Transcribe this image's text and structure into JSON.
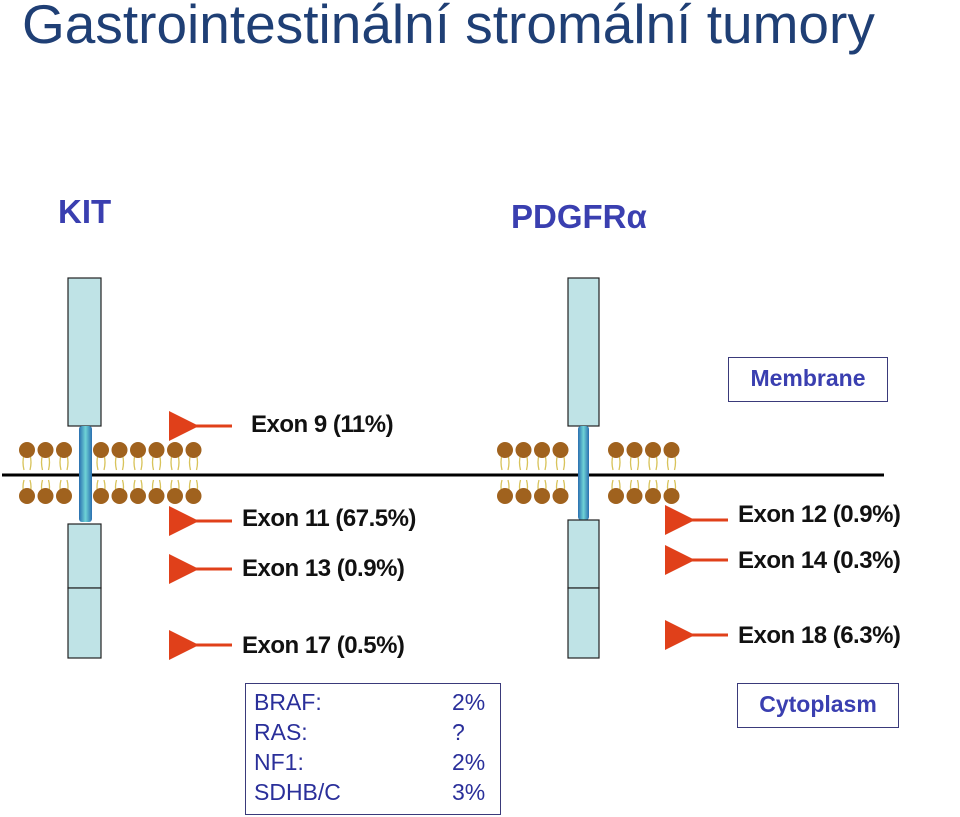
{
  "title": "Gastrointestinální stromální tumory",
  "receptors": {
    "kit": {
      "name": "KIT"
    },
    "pdgfra": {
      "name": "PDGFRα"
    }
  },
  "kit_exons": [
    {
      "label": "Exon 9 (11%)"
    },
    {
      "label": "Exon 11 (67.5%)"
    },
    {
      "label": "Exon 13 (0.9%)"
    },
    {
      "label": "Exon 17 (0.5%)"
    }
  ],
  "pdgfra_exons": [
    {
      "label": "Exon 12 (0.9%)"
    },
    {
      "label": "Exon 14 (0.3%)"
    },
    {
      "label": "Exon 18 (6.3%)"
    }
  ],
  "regions": {
    "membrane": "Membrane",
    "cytoplasm": "Cytoplasm"
  },
  "other_mutations": [
    {
      "gene": "BRAF:",
      "value": "2%"
    },
    {
      "gene": "RAS:",
      "value": "?"
    },
    {
      "gene": "NF1:",
      "value": "2%"
    },
    {
      "gene": "SDHB/C",
      "value": "3%"
    }
  ],
  "colors": {
    "title": "#1f3f75",
    "receptor_label": "#3a3fb0",
    "arrow": "#e0401a",
    "receptor_fill": "#bfe3e6",
    "lipid_head": "#a0621e",
    "membrane_line": "#000000"
  }
}
